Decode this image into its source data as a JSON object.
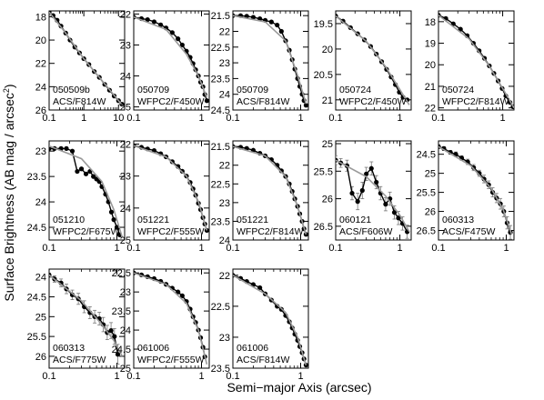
{
  "figure": {
    "xlabel": "Semi−major Axis  (arcsec)",
    "ylabel_main": "Surface Brightness  (AB mag / arcsec",
    "ylabel_sup": "2",
    "ylabel_close": ")"
  },
  "chart_data": [
    {
      "type": "line",
      "label_line1": "050509b",
      "label_line2": "ACS/F814W",
      "xscale": "log",
      "xlim": [
        0.1,
        15
      ],
      "ylim": [
        26,
        17.5
      ],
      "xticks": [
        0.1,
        1,
        10
      ],
      "xtick_labels": [
        "0.1",
        "1",
        "10"
      ],
      "yticks": [
        18,
        20,
        22,
        24,
        26
      ],
      "ytick_labels": [
        "18",
        "20",
        "22",
        "24",
        "26"
      ],
      "data": {
        "x": [
          0.1,
          0.13,
          0.17,
          0.22,
          0.3,
          0.4,
          0.55,
          0.75,
          1.0,
          1.4,
          2.0,
          2.8,
          4.0,
          5.5,
          7.5,
          10,
          12.5
        ],
        "y": [
          17.6,
          17.9,
          18.3,
          18.8,
          19.4,
          20.0,
          20.6,
          21.1,
          21.6,
          22.1,
          22.7,
          23.2,
          23.8,
          24.3,
          24.8,
          25.2,
          25.5
        ]
      },
      "model": {
        "x": [
          0.1,
          0.3,
          1,
          3,
          10,
          13
        ],
        "y": [
          17.6,
          19.4,
          21.6,
          23.3,
          25.2,
          25.6
        ]
      }
    },
    {
      "type": "line",
      "label_line1": "050709",
      "label_line2": "WFPC2/F450W",
      "xscale": "log",
      "xlim": [
        0.1,
        1.3
      ],
      "ylim": [
        25.1,
        21.9
      ],
      "xticks": [
        0.1,
        1
      ],
      "xtick_labels": [
        "0.1",
        "1"
      ],
      "yticks": [
        22,
        23,
        24,
        25
      ],
      "ytick_labels": [
        "22",
        "23",
        "24",
        "25"
      ],
      "data": {
        "x": [
          0.1,
          0.13,
          0.16,
          0.2,
          0.25,
          0.3,
          0.37,
          0.45,
          0.52,
          0.6,
          0.68,
          0.75,
          0.82,
          0.9,
          0.97,
          1.05,
          1.12,
          1.2
        ],
        "y": [
          22.1,
          22.15,
          22.18,
          22.25,
          22.35,
          22.45,
          22.6,
          22.8,
          23.0,
          23.2,
          23.4,
          23.6,
          23.8,
          24.0,
          24.2,
          24.35,
          24.6,
          24.8
        ]
      },
      "model": {
        "x": [
          0.1,
          0.3,
          0.6,
          0.9,
          1.2
        ],
        "y": [
          22.1,
          22.5,
          23.3,
          24.0,
          24.7
        ]
      }
    },
    {
      "type": "line",
      "label_line1": "050709",
      "label_line2": "ACS/F814W",
      "xscale": "log",
      "xlim": [
        0.1,
        1.3
      ],
      "ylim": [
        24.5,
        21.35
      ],
      "xticks": [
        0.1,
        1
      ],
      "xtick_labels": [
        "0.1",
        "1"
      ],
      "yticks": [
        21.5,
        22,
        22.5,
        23,
        23.5,
        24,
        24.5
      ],
      "ytick_labels": [
        "21.5",
        "22",
        "22.5",
        "23",
        "23.5",
        "24",
        "24.5"
      ],
      "data": {
        "x": [
          0.1,
          0.13,
          0.16,
          0.2,
          0.25,
          0.3,
          0.37,
          0.45,
          0.52,
          0.6,
          0.68,
          0.75,
          0.82,
          0.9,
          0.97,
          1.05,
          1.12,
          1.2
        ],
        "y": [
          21.5,
          21.5,
          21.52,
          21.55,
          21.6,
          21.65,
          21.7,
          21.8,
          22.0,
          22.3,
          22.6,
          22.9,
          23.2,
          23.5,
          23.75,
          24.0,
          24.2,
          24.35
        ]
      },
      "model": {
        "x": [
          0.1,
          0.3,
          0.6,
          0.9,
          1.2
        ],
        "y": [
          21.5,
          21.7,
          22.3,
          23.4,
          24.3
        ]
      }
    },
    {
      "type": "line",
      "label_line1": "050724",
      "label_line2": "WFPC2/F450W",
      "xscale": "log",
      "xlim": [
        0.1,
        1.5
      ],
      "ylim": [
        21.2,
        19.25
      ],
      "xticks": [
        0.1,
        1
      ],
      "xtick_labels": [
        "0.1",
        "1"
      ],
      "yticks": [
        19.5,
        20,
        20.5,
        21
      ],
      "ytick_labels": [
        "19.5",
        "20",
        "20.5",
        "21"
      ],
      "data": {
        "x": [
          0.1,
          0.13,
          0.17,
          0.22,
          0.28,
          0.35,
          0.43,
          0.52,
          0.62,
          0.73,
          0.85,
          0.98,
          1.12,
          1.3
        ],
        "y": [
          19.35,
          19.45,
          19.58,
          19.7,
          19.82,
          19.95,
          20.1,
          20.25,
          20.4,
          20.55,
          20.7,
          20.85,
          20.95,
          21.0
        ]
      },
      "model": {
        "x": [
          0.1,
          0.3,
          0.6,
          1.0,
          1.4
        ],
        "y": [
          19.35,
          19.85,
          20.35,
          20.8,
          21.1
        ]
      }
    },
    {
      "type": "line",
      "label_line1": "050724",
      "label_line2": "WFPC2/F814W",
      "xscale": "log",
      "xlim": [
        0.1,
        1.5
      ],
      "ylim": [
        22.1,
        17.5
      ],
      "xticks": [
        0.1,
        1
      ],
      "xtick_labels": [
        "0.1",
        "1"
      ],
      "yticks": [
        18,
        19,
        20,
        21,
        22
      ],
      "ytick_labels": [
        "18",
        "19",
        "20",
        "21",
        "22"
      ],
      "data": {
        "x": [
          0.1,
          0.13,
          0.17,
          0.22,
          0.28,
          0.35,
          0.43,
          0.52,
          0.62,
          0.73,
          0.85,
          0.98,
          1.12,
          1.3,
          1.45
        ],
        "y": [
          17.7,
          17.85,
          18.1,
          18.35,
          18.65,
          19.0,
          19.35,
          19.7,
          20.05,
          20.4,
          20.75,
          21.1,
          21.45,
          21.75,
          21.95
        ]
      },
      "model": {
        "x": [
          0.1,
          0.3,
          0.6,
          1.0,
          1.5
        ],
        "y": [
          17.7,
          18.8,
          20.0,
          21.1,
          22.0
        ]
      }
    },
    {
      "type": "line",
      "label_line1": "051210",
      "label_line2": "WFPC2/F675W",
      "xscale": "log",
      "xlim": [
        0.1,
        1.3
      ],
      "ylim": [
        24.75,
        22.8
      ],
      "xticks": [
        0.1,
        1
      ],
      "xtick_labels": [
        "0.1",
        "1"
      ],
      "yticks": [
        23,
        23.5,
        24,
        24.5
      ],
      "ytick_labels": [
        "23",
        "23.5",
        "24",
        "24.5"
      ],
      "data": {
        "x": [
          0.1,
          0.12,
          0.15,
          0.18,
          0.22,
          0.26,
          0.3,
          0.35,
          0.4,
          0.45,
          0.5,
          0.55,
          0.6,
          0.68,
          0.75,
          0.83,
          0.9,
          1.0,
          1.1
        ],
        "y": [
          22.95,
          22.95,
          22.95,
          22.95,
          23.0,
          23.4,
          23.35,
          23.45,
          23.4,
          23.5,
          23.55,
          23.6,
          23.7,
          23.85,
          24.0,
          24.2,
          24.35,
          24.5,
          24.65
        ]
      },
      "model": {
        "x": [
          0.1,
          0.3,
          0.6,
          0.9,
          1.2
        ],
        "y": [
          22.9,
          23.15,
          23.6,
          24.15,
          24.7
        ]
      }
    },
    {
      "type": "line",
      "label_line1": "051221",
      "label_line2": "WFPC2/F555W",
      "xscale": "log",
      "xlim": [
        0.1,
        1.3
      ],
      "ylim": [
        25.0,
        21.9
      ],
      "xticks": [
        0.1,
        1
      ],
      "xtick_labels": [
        "0.1",
        "1"
      ],
      "yticks": [
        22,
        23,
        24,
        25
      ],
      "ytick_labels": [
        "22",
        "23",
        "24",
        "25"
      ],
      "data": {
        "x": [
          0.1,
          0.13,
          0.16,
          0.2,
          0.25,
          0.3,
          0.37,
          0.45,
          0.52,
          0.6,
          0.68,
          0.75,
          0.82,
          0.9,
          0.97,
          1.05,
          1.12,
          1.2
        ],
        "y": [
          22.05,
          22.1,
          22.15,
          22.2,
          22.3,
          22.4,
          22.55,
          22.7,
          22.85,
          23.0,
          23.2,
          23.4,
          23.6,
          23.85,
          24.05,
          24.3,
          24.5,
          24.7
        ]
      },
      "model": {
        "x": [
          0.1,
          0.3,
          0.6,
          0.9,
          1.2
        ],
        "y": [
          22.05,
          22.4,
          23.0,
          23.8,
          24.7
        ]
      }
    },
    {
      "type": "line",
      "label_line1": "051221",
      "label_line2": "WFPC2/F814W",
      "xscale": "log",
      "xlim": [
        0.1,
        1.3
      ],
      "ylim": [
        24.0,
        21.35
      ],
      "xticks": [
        0.1,
        1
      ],
      "xtick_labels": [
        "0.1",
        "1"
      ],
      "yticks": [
        21.5,
        22,
        22.5,
        23,
        23.5,
        24
      ],
      "ytick_labels": [
        "21.5",
        "22",
        "22.5",
        "23",
        "23.5",
        "24"
      ],
      "data": {
        "x": [
          0.1,
          0.13,
          0.16,
          0.2,
          0.25,
          0.3,
          0.37,
          0.45,
          0.52,
          0.6,
          0.68,
          0.75,
          0.82,
          0.9,
          0.97,
          1.05,
          1.12,
          1.2
        ],
        "y": [
          21.5,
          21.52,
          21.55,
          21.6,
          21.68,
          21.75,
          21.85,
          22.0,
          22.15,
          22.3,
          22.5,
          22.7,
          22.9,
          23.1,
          23.3,
          23.5,
          23.7,
          23.85
        ]
      },
      "model": {
        "x": [
          0.1,
          0.3,
          0.6,
          0.9,
          1.2
        ],
        "y": [
          21.5,
          21.75,
          22.3,
          23.1,
          23.85
        ]
      }
    },
    {
      "type": "line",
      "label_line1": "060121",
      "label_line2": "ACS/F606W",
      "xscale": "log",
      "xlim": [
        0.1,
        1.5
      ],
      "ylim": [
        26.75,
        24.95
      ],
      "xticks": [
        0.1,
        1
      ],
      "xtick_labels": [
        "0.1",
        "1"
      ],
      "yticks": [
        25,
        25.5,
        26,
        26.5
      ],
      "ytick_labels": [
        "25",
        "25.5",
        "26",
        "26.5"
      ],
      "data": {
        "x": [
          0.1,
          0.12,
          0.15,
          0.18,
          0.22,
          0.26,
          0.3,
          0.36,
          0.43,
          0.5,
          0.6,
          0.7,
          0.82,
          0.95,
          1.1,
          1.3
        ],
        "y": [
          25.3,
          25.35,
          25.4,
          25.9,
          26.05,
          25.85,
          25.55,
          25.45,
          25.7,
          25.9,
          26.1,
          26.0,
          26.25,
          26.35,
          26.45,
          26.6
        ]
      },
      "err": [
        0.08,
        0.08,
        0.1,
        0.12,
        0.15,
        0.15,
        0.12,
        0.12,
        0.12,
        0.12,
        0.12,
        0.12,
        0.12,
        0.12,
        0.12,
        0.12
      ],
      "model": {
        "x": [
          0.1,
          0.3,
          0.6,
          1.0,
          1.4
        ],
        "y": [
          25.3,
          25.6,
          25.95,
          26.3,
          26.6
        ]
      }
    },
    {
      "type": "line",
      "label_line1": "060313",
      "label_line2": "ACS/F475W",
      "xscale": "log",
      "xlim": [
        0.1,
        1.3
      ],
      "ylim": [
        26.75,
        24.15
      ],
      "xticks": [
        0.1,
        1
      ],
      "xtick_labels": [
        "0.1",
        "1"
      ],
      "yticks": [
        24.5,
        25,
        25.5,
        26,
        26.5
      ],
      "ytick_labels": [
        "24.5",
        "25",
        "25.5",
        "26",
        "26.5"
      ],
      "data": {
        "x": [
          0.1,
          0.12,
          0.15,
          0.18,
          0.22,
          0.27,
          0.33,
          0.4,
          0.47,
          0.55,
          0.63,
          0.72,
          0.82,
          0.92,
          1.03,
          1.15
        ],
        "y": [
          24.3,
          24.35,
          24.45,
          24.5,
          24.6,
          24.7,
          24.85,
          25.0,
          25.15,
          25.3,
          25.5,
          25.65,
          25.8,
          26.0,
          26.3,
          26.55
        ]
      },
      "err": [
        0.05,
        0.05,
        0.05,
        0.06,
        0.06,
        0.07,
        0.08,
        0.08,
        0.1,
        0.1,
        0.12,
        0.12,
        0.14,
        0.14,
        0.16,
        0.18
      ],
      "model": {
        "x": [
          0.1,
          0.3,
          0.6,
          0.9,
          1.2
        ],
        "y": [
          24.3,
          24.8,
          25.4,
          25.95,
          26.6
        ]
      }
    },
    {
      "type": "line",
      "label_line1": "060313",
      "label_line2": "ACS/F775W",
      "xscale": "log",
      "xlim": [
        0.1,
        1.3
      ],
      "ylim": [
        26.3,
        23.8
      ],
      "xticks": [
        0.1,
        1
      ],
      "xtick_labels": [
        "0.1",
        "1"
      ],
      "yticks": [
        24,
        24.5,
        25,
        25.5,
        26
      ],
      "ytick_labels": [
        "24",
        "24.5",
        "25",
        "25.5",
        "26"
      ],
      "data": {
        "x": [
          0.1,
          0.12,
          0.15,
          0.18,
          0.22,
          0.27,
          0.33,
          0.4,
          0.47,
          0.55,
          0.63,
          0.72,
          0.82,
          0.92,
          1.03
        ],
        "y": [
          23.95,
          24.05,
          24.15,
          24.3,
          24.45,
          24.55,
          24.75,
          24.9,
          25.0,
          25.05,
          25.2,
          25.4,
          25.35,
          25.5,
          25.95
        ]
      },
      "err": [
        0.05,
        0.08,
        0.1,
        0.12,
        0.12,
        0.14,
        0.15,
        0.15,
        0.16,
        0.16,
        0.18,
        0.18,
        0.2,
        0.2,
        0.25
      ],
      "model": {
        "x": [
          0.1,
          0.3,
          0.6,
          0.9,
          1.2
        ],
        "y": [
          23.95,
          24.6,
          25.2,
          25.6,
          26.0
        ]
      }
    },
    {
      "type": "line",
      "label_line1": "061006",
      "label_line2": "WFPC2/F555W",
      "xscale": "log",
      "xlim": [
        0.1,
        1.3
      ],
      "ylim": [
        25.0,
        22.4
      ],
      "xticks": [
        0.1,
        1
      ],
      "xtick_labels": [
        "0.1",
        "1"
      ],
      "yticks": [
        22.5,
        23,
        23.5,
        24,
        24.5,
        25
      ],
      "ytick_labels": [
        "22.5",
        "23",
        "23.5",
        "24",
        "24.5",
        "25"
      ],
      "data": {
        "x": [
          0.1,
          0.13,
          0.16,
          0.2,
          0.25,
          0.3,
          0.37,
          0.45,
          0.52,
          0.6,
          0.68,
          0.75,
          0.82,
          0.9,
          0.97,
          1.05,
          1.12
        ],
        "y": [
          22.5,
          22.55,
          22.6,
          22.65,
          22.72,
          22.8,
          22.9,
          23.0,
          23.1,
          23.25,
          23.45,
          23.65,
          23.8,
          24.0,
          24.2,
          24.45,
          24.7
        ]
      },
      "model": {
        "x": [
          0.1,
          0.3,
          0.6,
          0.9,
          1.2
        ],
        "y": [
          22.5,
          22.8,
          23.3,
          24.0,
          24.9
        ]
      }
    },
    {
      "type": "line",
      "label_line1": "061006",
      "label_line2": "ACS/F814W",
      "xscale": "log",
      "xlim": [
        0.1,
        1.3
      ],
      "ylim": [
        23.5,
        21.9
      ],
      "xticks": [
        0.1,
        1
      ],
      "xtick_labels": [
        "0.1",
        "1"
      ],
      "yticks": [
        22,
        22.5,
        23,
        23.5
      ],
      "ytick_labels": [
        "22",
        "22.5",
        "23",
        "23.5"
      ],
      "data": {
        "x": [
          0.1,
          0.13,
          0.16,
          0.2,
          0.25,
          0.3,
          0.37,
          0.45,
          0.52,
          0.6,
          0.68,
          0.75,
          0.82,
          0.9,
          0.97,
          1.05,
          1.12,
          1.2
        ],
        "y": [
          22.0,
          22.05,
          22.1,
          22.15,
          22.2,
          22.3,
          22.4,
          22.5,
          22.55,
          22.65,
          22.75,
          22.85,
          22.95,
          23.05,
          23.15,
          23.25,
          23.35,
          23.45
        ]
      },
      "model": {
        "x": [
          0.1,
          0.3,
          0.6,
          0.9,
          1.2
        ],
        "y": [
          22.0,
          22.3,
          22.6,
          23.0,
          23.45
        ]
      }
    }
  ]
}
